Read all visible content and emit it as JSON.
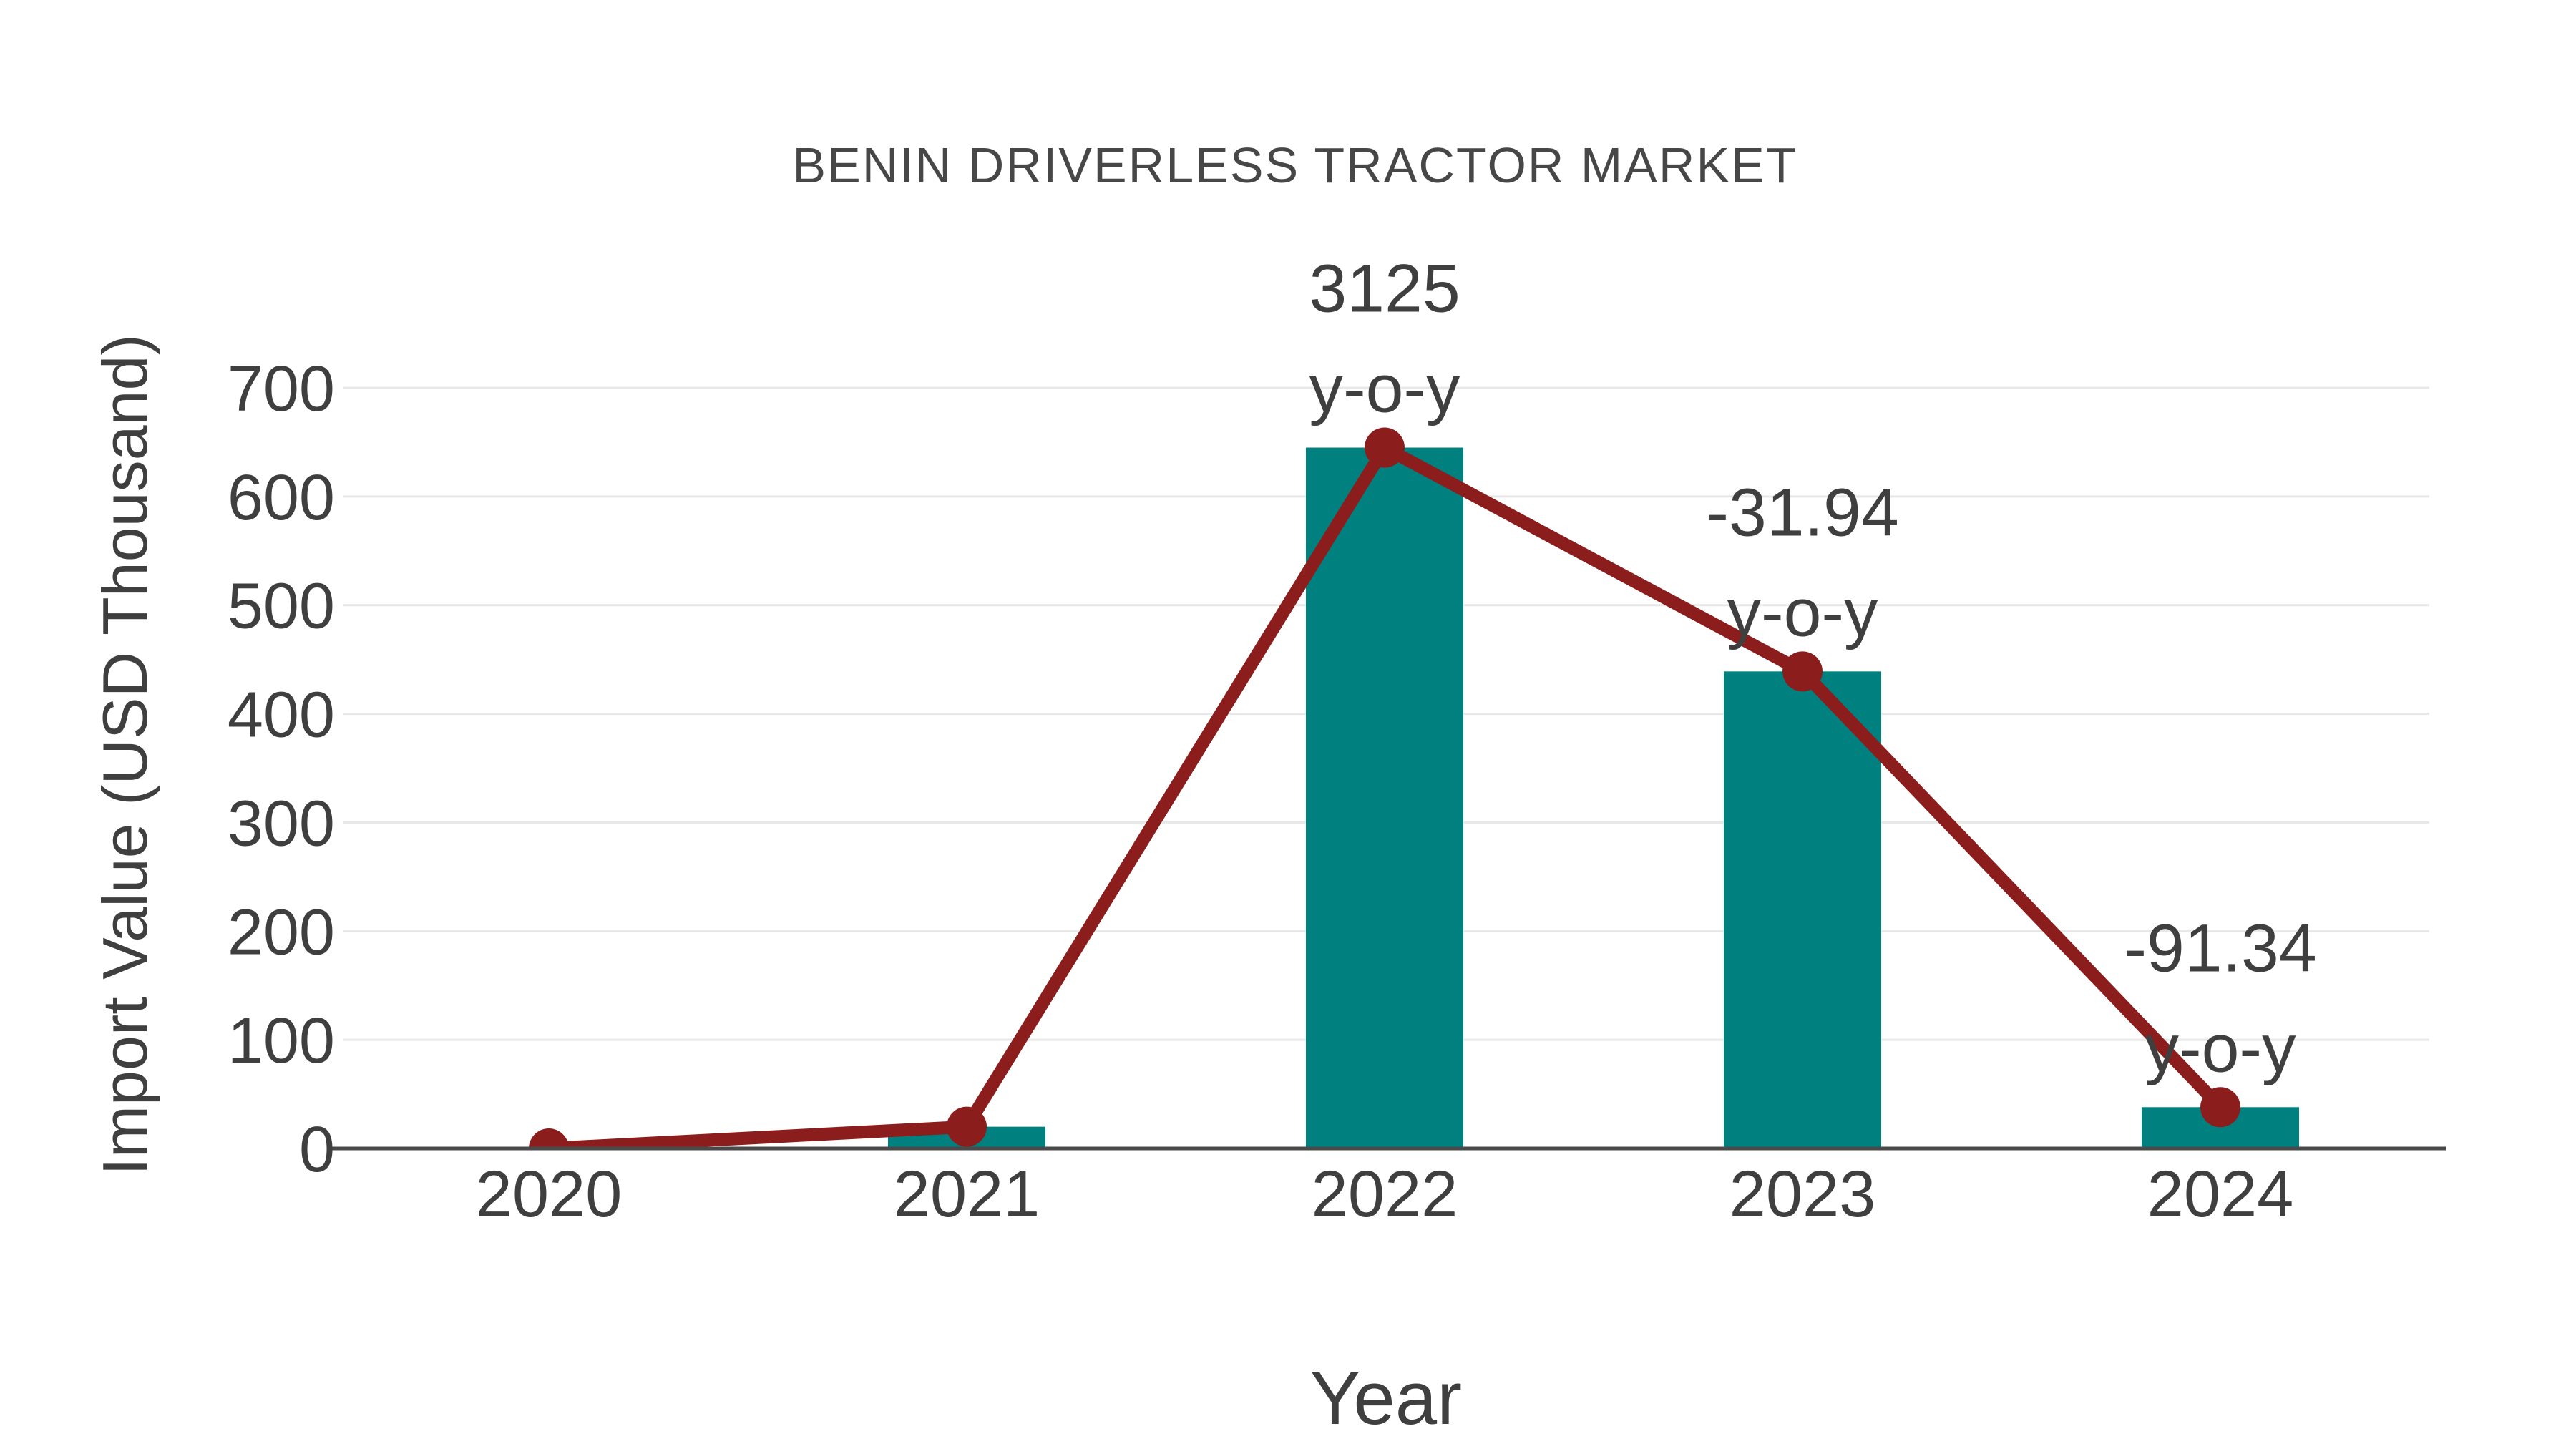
{
  "chart_data": {
    "type": "bar",
    "title": "BENIN DRIVERLESS TRACTOR MARKET",
    "xlabel": "Year",
    "ylabel": "Import Value (USD Thousand)",
    "categories": [
      "2020",
      "2021",
      "2022",
      "2023",
      "2024"
    ],
    "series": [
      {
        "name": "Import Value",
        "type": "bar",
        "values": [
          0,
          20,
          645,
          439,
          38
        ]
      },
      {
        "name": "Import Value trend",
        "type": "line",
        "values": [
          0,
          20,
          645,
          439,
          38
        ]
      }
    ],
    "annotations": [
      {
        "category": "2022",
        "value_text": "3125",
        "unit_text": "y-o-y"
      },
      {
        "category": "2023",
        "value_text": "-31.94",
        "unit_text": "y-o-y"
      },
      {
        "category": "2024",
        "value_text": "-91.34",
        "unit_text": "y-o-y"
      }
    ],
    "ylim": [
      0,
      700
    ],
    "yticks": [
      0,
      100,
      200,
      300,
      400,
      500,
      600,
      700
    ],
    "grid": true,
    "legend_position": "none"
  },
  "colors": {
    "bar": "#018080",
    "line": "#8C1D1D",
    "marker": "#8C1D1D",
    "gridline": "#e8e8e8",
    "axis": "#4a4a4a",
    "tick_text": "#3f3f3f",
    "annotation_text": "#3f3f3f",
    "title_text": "#474747",
    "background": "#ffffff"
  }
}
